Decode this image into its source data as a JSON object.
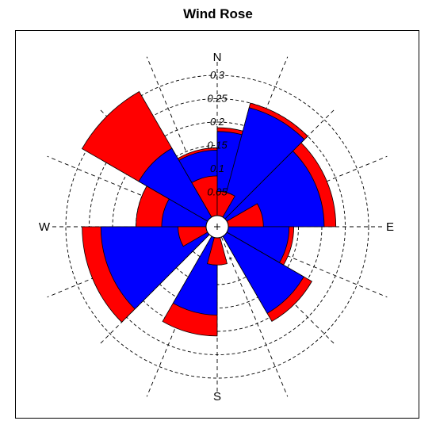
{
  "chart_data": {
    "type": "wind-rose",
    "title": "Wind Rose",
    "direction_labels": [
      "N",
      "E",
      "S",
      "W"
    ],
    "ring_labels": [
      "0.05",
      "0.1",
      "0.15",
      "0.2",
      "0.25",
      "0.3"
    ],
    "rings": [
      0.05,
      0.1,
      0.15,
      0.2,
      0.25,
      0.3
    ],
    "sector_width_deg": 45,
    "sector_start_deg": [
      -30,
      0,
      15,
      45,
      90,
      120,
      180,
      225,
      270,
      300
    ],
    "sector_end_deg": [
      0,
      30,
      45,
      90,
      120,
      150,
      210,
      270,
      300,
      330
    ],
    "series": [
      {
        "name": "",
        "color": "#ff0000",
        "values": [
          0.085,
          0.075,
          0.0,
          0.0,
          0.0,
          0.07,
          0.0,
          0.05,
          0.06,
          0.06
        ]
      },
      {
        "name": "",
        "color": "#0000ff",
        "values": [
          0.14,
          0.18,
          0.24,
          0.205,
          0.13,
          0.19,
          0.165,
          0.225,
          0.095,
          0.17
        ]
      }
    ],
    "cumulative_totals": [
      0.145,
      0.188,
      0.25,
      0.23,
      0.14,
      0.21,
      0.21,
      0.265,
      0.15,
      0.31
    ]
  }
}
